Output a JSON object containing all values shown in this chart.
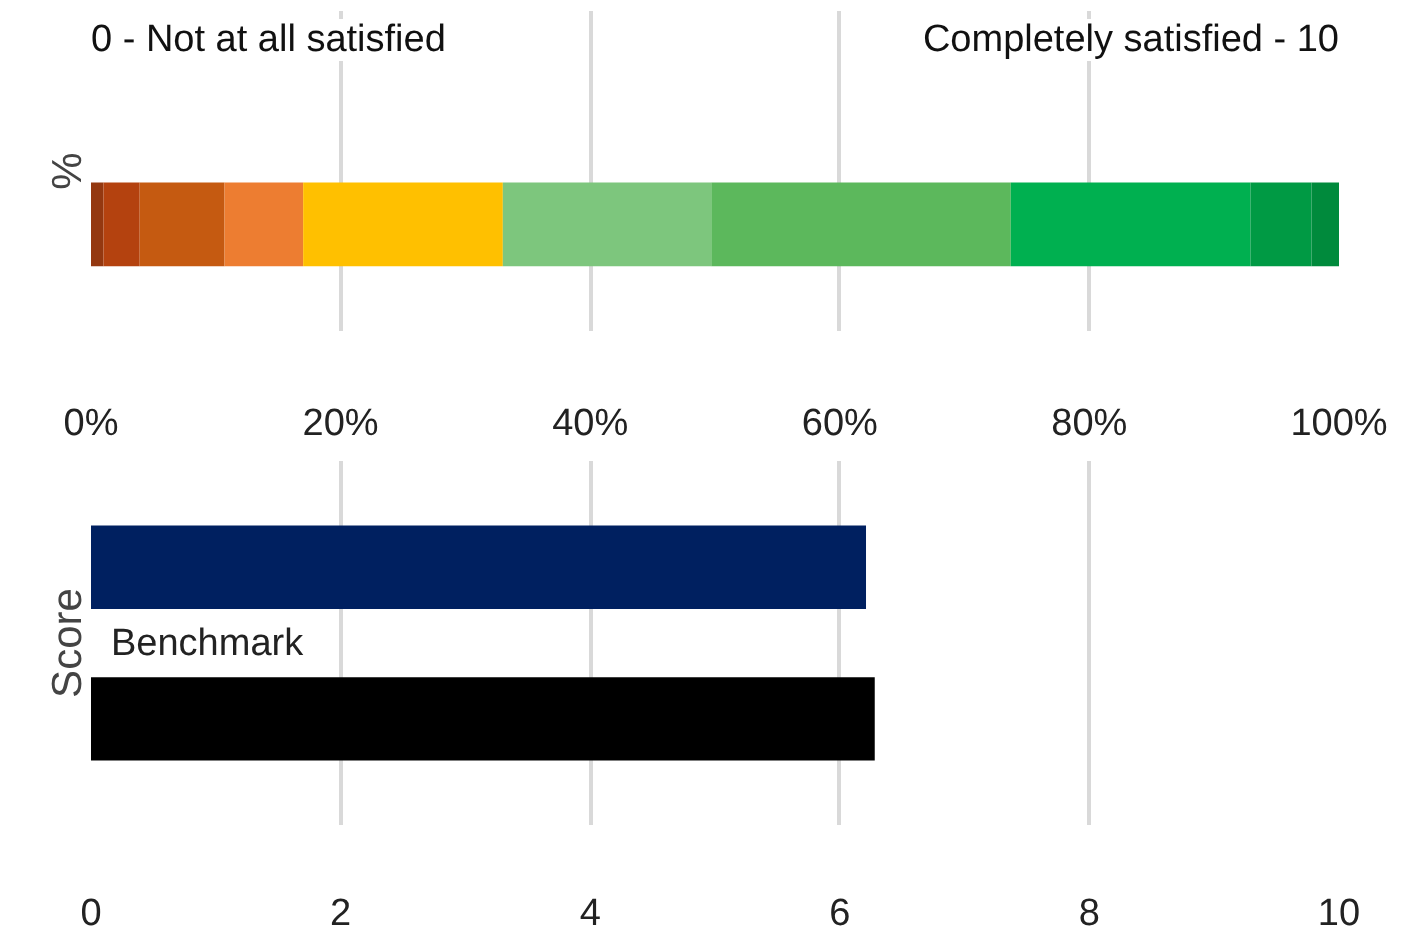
{
  "chart_data": [
    {
      "type": "bar",
      "orientation": "horizontal",
      "stacked": true,
      "categories": [
        null
      ],
      "ylabel": "%",
      "annotations": [
        "0 - Not at all satisfied",
        "Completely satisfied - 10"
      ],
      "series": [
        {
          "color": "#943810",
          "values": [
            1.0
          ]
        },
        {
          "color": "#b4420f",
          "values": [
            2.9
          ]
        },
        {
          "color": "#c55a11",
          "values": [
            6.8
          ]
        },
        {
          "color": "#ed7d31",
          "values": [
            6.3
          ]
        },
        {
          "color": "#ffc000",
          "values": [
            16.0
          ]
        },
        {
          "color": "#7dc67d",
          "values": [
            16.7
          ]
        },
        {
          "color": "#5cb85c",
          "values": [
            24.0
          ]
        },
        {
          "color": "#00b050",
          "values": [
            19.2
          ]
        },
        {
          "color": "#009a44",
          "values": [
            4.9
          ]
        },
        {
          "color": "#008a3c",
          "values": [
            2.2
          ]
        }
      ],
      "xlim": [
        0,
        100
      ],
      "xticks": [
        {
          "value": 0,
          "label": "0%"
        },
        {
          "value": 20,
          "label": "20%"
        },
        {
          "value": 40,
          "label": "40%"
        },
        {
          "value": 60,
          "label": "60%"
        },
        {
          "value": 80,
          "label": "80%"
        },
        {
          "value": 100,
          "label": "100%"
        }
      ],
      "grid": "x"
    },
    {
      "type": "bar",
      "orientation": "horizontal",
      "categories": [
        null,
        "Benchmark"
      ],
      "values": [
        6.21,
        6.28
      ],
      "colors": [
        "#002060",
        "#000000"
      ],
      "ylabel": "Score",
      "xlim": [
        0,
        10
      ],
      "xticks": [
        0,
        2,
        4,
        6,
        8,
        10
      ],
      "grid": "x"
    }
  ]
}
